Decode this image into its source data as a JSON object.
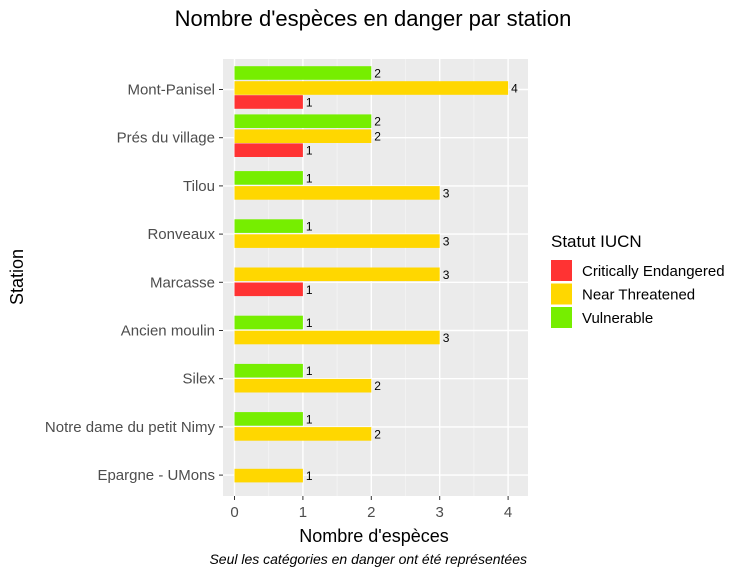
{
  "chart_data": {
    "type": "bar",
    "orientation": "horizontal",
    "title": "Nombre d'espèces en danger par station",
    "xlabel": "Nombre d'espèces",
    "ylabel": "Station",
    "caption": "Seul les catégories en danger ont été représentées",
    "xlim": [
      0,
      4.3
    ],
    "xticks": [
      0,
      1,
      2,
      3,
      4
    ],
    "grid": true,
    "legend": {
      "title": "Statut IUCN",
      "placement": "right"
    },
    "categories": [
      "Mont-Panisel",
      "Prés du village",
      "Tilou",
      "Ronveaux",
      "Marcasse",
      "Ancien moulin",
      "Silex",
      "Notre dame du petit Nimy",
      "Epargne - UMons"
    ],
    "series": [
      {
        "name": "Critically Endangered",
        "color": "#ff3333",
        "values": [
          1,
          1,
          0,
          0,
          1,
          0,
          0,
          0,
          0
        ]
      },
      {
        "name": "Near Threatened",
        "color": "#ffd700",
        "values": [
          4,
          2,
          3,
          3,
          3,
          3,
          2,
          2,
          1
        ]
      },
      {
        "name": "Vulnerable",
        "color": "#76ee00",
        "values": [
          2,
          2,
          1,
          1,
          0,
          1,
          1,
          1,
          0
        ]
      }
    ]
  }
}
